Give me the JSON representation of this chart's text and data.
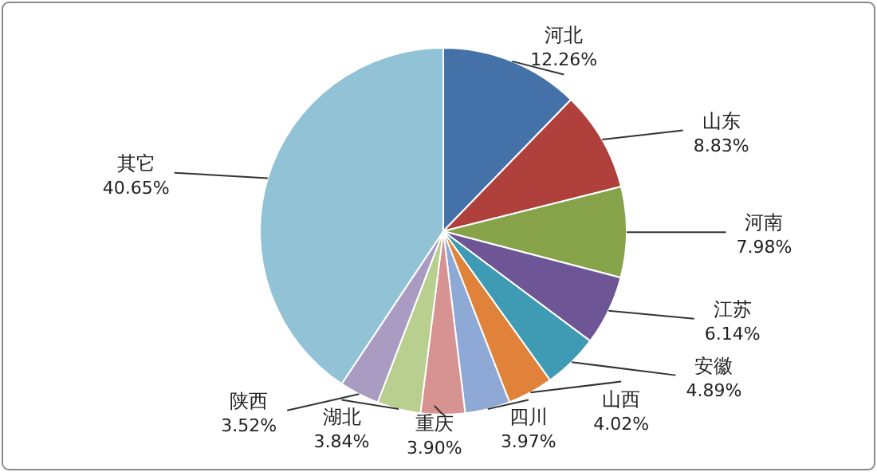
{
  "chart_data": {
    "type": "pie",
    "categories": [
      "河北",
      "山东",
      "河南",
      "江苏",
      "安徽",
      "山西",
      "四川",
      "重庆",
      "湖北",
      "陕西",
      "其它"
    ],
    "values": [
      12.26,
      8.83,
      7.98,
      6.14,
      4.89,
      4.02,
      3.97,
      3.9,
      3.84,
      3.52,
      40.65
    ],
    "value_labels": [
      "12.26%",
      "8.83%",
      "7.98%",
      "6.14%",
      "4.89%",
      "4.02%",
      "3.97%",
      "3.90%",
      "3.84%",
      "3.52%",
      "40.65%"
    ],
    "colors": [
      "#4472a8",
      "#b0403c",
      "#86a34a",
      "#6e5596",
      "#3e9bb3",
      "#e0823a",
      "#8fa9d6",
      "#d69392",
      "#b9cf8f",
      "#a99bc1",
      "#92c2d6"
    ]
  }
}
